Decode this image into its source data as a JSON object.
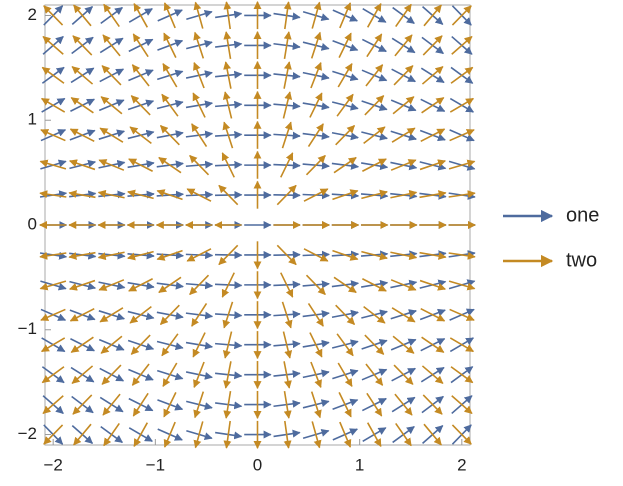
{
  "chart_data": {
    "type": "vector",
    "series": [
      {
        "name": "one",
        "color": "#4e6b9e"
      },
      {
        "name": "two",
        "color": "#c48a23"
      }
    ],
    "xlim": [
      -2.08,
      2.08
    ],
    "ylim": [
      -2.1,
      2.1
    ],
    "xticks": [
      {
        "value": -2,
        "label": "−2"
      },
      {
        "value": -1,
        "label": "−1"
      },
      0,
      1,
      2
    ],
    "yticks": [
      {
        "value": -2,
        "label": "−2"
      },
      {
        "value": -1,
        "label": "−1"
      },
      0,
      1,
      2
    ],
    "legend": "right"
  }
}
